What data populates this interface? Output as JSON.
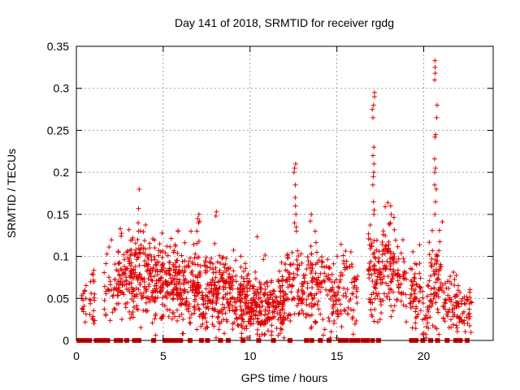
{
  "chart_data": {
    "type": "scatter",
    "title": "Day 141 of 2018, SRMTID for receiver rgdg",
    "xlabel": "GPS time / hours",
    "ylabel": "SRMTID / TECUs",
    "xlim": [
      0,
      24
    ],
    "ylim": [
      0,
      0.35
    ],
    "xticks": [
      0,
      5,
      10,
      15,
      20
    ],
    "yticks": [
      0,
      0.05,
      0.1,
      0.15,
      0.2,
      0.25,
      0.3,
      0.35
    ],
    "grid": true,
    "marker": "+",
    "color": "#e00000",
    "baseline_marker_hours": [
      0.15,
      0.3,
      0.45,
      0.6,
      0.75,
      1.15,
      1.35,
      1.6,
      1.8,
      2.3,
      2.55,
      2.9,
      3.35,
      3.6,
      4.45,
      5.1,
      5.3,
      5.55,
      5.75,
      6.0,
      6.55,
      7.2,
      7.55,
      8.3,
      8.75,
      9.6,
      10.5,
      11.35,
      12.3,
      13.25,
      13.55,
      14.05,
      14.55,
      15.2,
      15.35,
      15.55,
      15.85,
      16.05,
      16.2,
      16.5,
      16.75,
      17.05,
      17.4,
      19.3,
      19.55,
      19.95,
      20.4,
      20.8,
      21.35,
      21.85,
      22.1,
      22.5
    ],
    "segments": [
      {
        "x0": 0.3,
        "x1": 0.6,
        "mean": 0.045,
        "spread": 0.02,
        "n": 14
      },
      {
        "x0": 0.75,
        "x1": 1.1,
        "mean": 0.045,
        "spread": 0.03,
        "n": 20
      },
      {
        "x0": 1.6,
        "x1": 2.3,
        "mean": 0.06,
        "spread": 0.02,
        "n": 30
      },
      {
        "x0": 2.3,
        "x1": 3.0,
        "mean": 0.07,
        "spread": 0.03,
        "n": 60
      },
      {
        "x0": 3.0,
        "x1": 4.0,
        "mean": 0.075,
        "spread": 0.035,
        "n": 110
      },
      {
        "x0": 4.0,
        "x1": 5.0,
        "mean": 0.07,
        "spread": 0.03,
        "n": 110
      },
      {
        "x0": 5.0,
        "x1": 6.0,
        "mean": 0.068,
        "spread": 0.03,
        "n": 110
      },
      {
        "x0": 6.0,
        "x1": 7.0,
        "mean": 0.062,
        "spread": 0.03,
        "n": 100
      },
      {
        "x0": 7.0,
        "x1": 8.0,
        "mean": 0.055,
        "spread": 0.028,
        "n": 100
      },
      {
        "x0": 8.0,
        "x1": 9.0,
        "mean": 0.055,
        "spread": 0.028,
        "n": 110
      },
      {
        "x0": 9.0,
        "x1": 10.0,
        "mean": 0.048,
        "spread": 0.025,
        "n": 110
      },
      {
        "x0": 10.0,
        "x1": 11.0,
        "mean": 0.04,
        "spread": 0.02,
        "n": 110
      },
      {
        "x0": 11.0,
        "x1": 12.0,
        "mean": 0.04,
        "spread": 0.02,
        "n": 110
      },
      {
        "x0": 12.0,
        "x1": 12.8,
        "mean": 0.07,
        "spread": 0.03,
        "n": 60
      },
      {
        "x0": 12.8,
        "x1": 13.4,
        "mean": 0.06,
        "spread": 0.025,
        "n": 40
      },
      {
        "x0": 13.4,
        "x1": 14.5,
        "mean": 0.065,
        "spread": 0.03,
        "n": 80
      },
      {
        "x0": 14.5,
        "x1": 15.3,
        "mean": 0.05,
        "spread": 0.025,
        "n": 60
      },
      {
        "x0": 15.3,
        "x1": 16.2,
        "mean": 0.06,
        "spread": 0.025,
        "n": 50
      },
      {
        "x0": 16.8,
        "x1": 17.6,
        "mean": 0.08,
        "spread": 0.03,
        "n": 80
      },
      {
        "x0": 17.6,
        "x1": 18.4,
        "mean": 0.09,
        "spread": 0.035,
        "n": 80
      },
      {
        "x0": 18.4,
        "x1": 19.0,
        "mean": 0.07,
        "spread": 0.03,
        "n": 40
      },
      {
        "x0": 19.2,
        "x1": 19.8,
        "mean": 0.06,
        "spread": 0.03,
        "n": 50
      },
      {
        "x0": 19.8,
        "x1": 20.3,
        "mean": 0.03,
        "spread": 0.02,
        "n": 25
      },
      {
        "x0": 20.3,
        "x1": 21.1,
        "mean": 0.075,
        "spread": 0.035,
        "n": 70
      },
      {
        "x0": 21.1,
        "x1": 21.9,
        "mean": 0.045,
        "spread": 0.02,
        "n": 50
      },
      {
        "x0": 21.9,
        "x1": 22.8,
        "mean": 0.04,
        "spread": 0.018,
        "n": 50
      }
    ],
    "peaks": [
      {
        "x": 3.6,
        "values": [
          0.18,
          0.157,
          0.14,
          0.13
        ]
      },
      {
        "x": 7.0,
        "values": [
          0.15,
          0.145,
          0.14,
          0.13
        ]
      },
      {
        "x": 8.1,
        "values": [
          0.153,
          0.148
        ]
      },
      {
        "x": 12.6,
        "values": [
          0.21,
          0.205,
          0.2,
          0.185,
          0.17,
          0.16,
          0.15,
          0.14,
          0.135,
          0.13
        ]
      },
      {
        "x": 13.5,
        "values": [
          0.15,
          0.142
        ]
      },
      {
        "x": 17.1,
        "values": [
          0.295,
          0.29,
          0.28,
          0.275,
          0.265,
          0.23,
          0.22,
          0.21,
          0.2,
          0.195,
          0.185,
          0.165,
          0.155,
          0.15
        ]
      },
      {
        "x": 18.1,
        "values": [
          0.16,
          0.15,
          0.14
        ]
      },
      {
        "x": 20.7,
        "values": [
          0.333,
          0.325,
          0.318,
          0.31,
          0.28,
          0.265,
          0.245,
          0.242,
          0.216,
          0.205,
          0.2,
          0.185,
          0.18,
          0.165,
          0.15
        ]
      }
    ]
  }
}
